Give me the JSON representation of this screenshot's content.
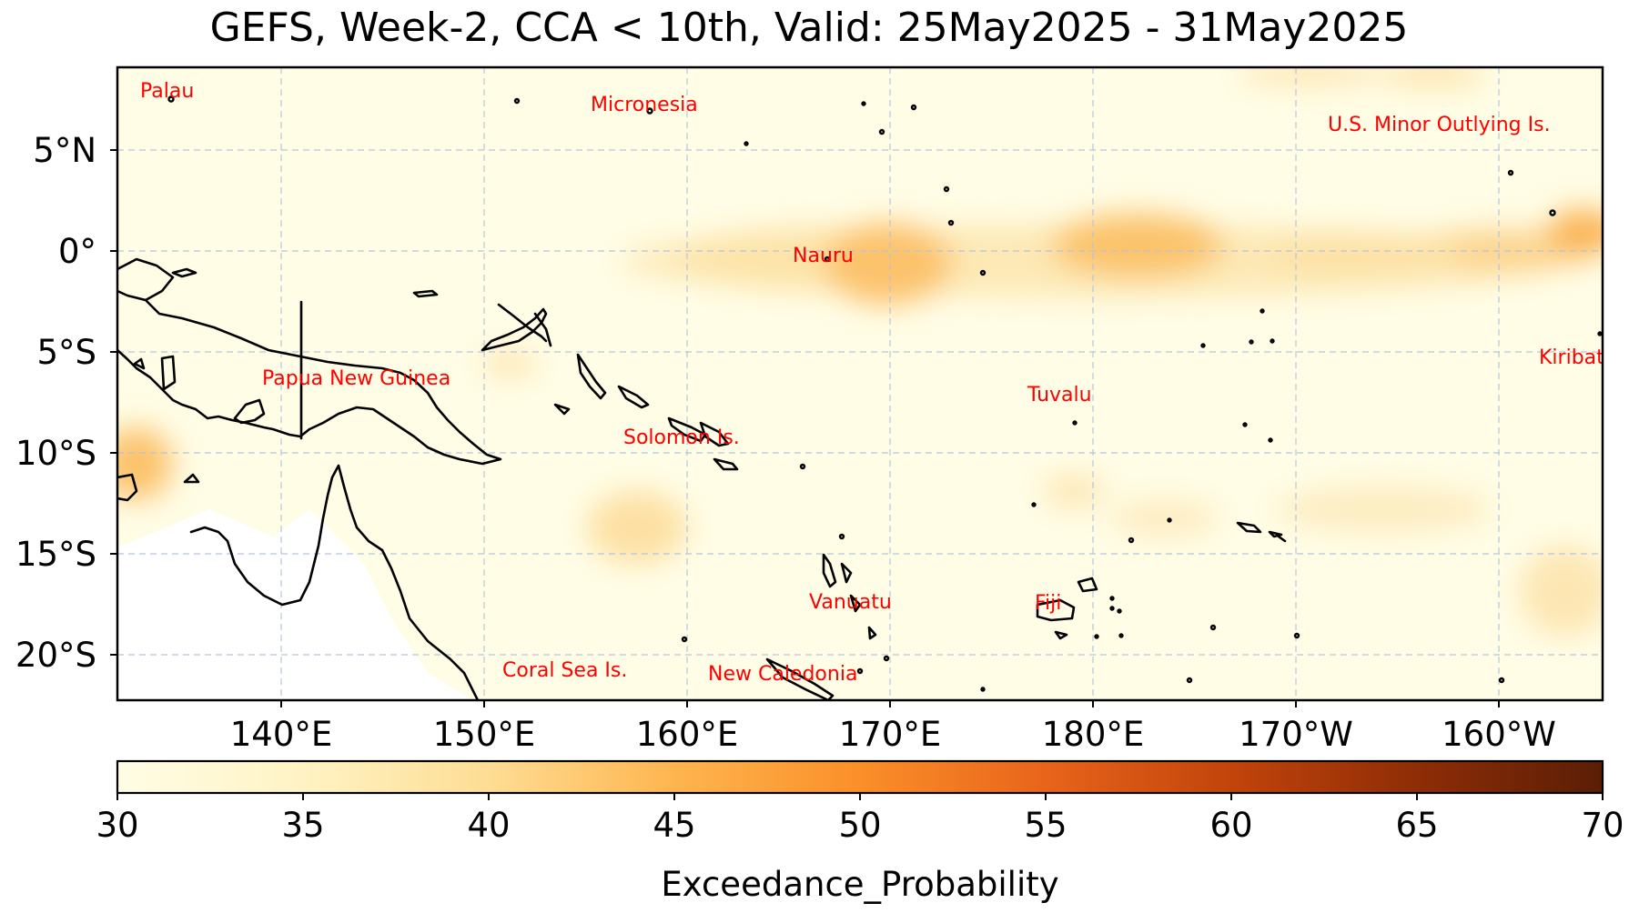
{
  "title": "GEFS, Week-2, CCA < 10th, Valid: 25May2025 - 31May2025",
  "map": {
    "lon_ticks": [
      "140°E",
      "150°E",
      "160°E",
      "170°E",
      "180°E",
      "170°W",
      "160°W"
    ],
    "lat_ticks": [
      "5°N",
      "0°",
      "5°S",
      "10°S",
      "15°S",
      "20°S"
    ],
    "places": [
      {
        "name": "Palau"
      },
      {
        "name": "Micronesia"
      },
      {
        "name": "U.S. Minor Outlying Is."
      },
      {
        "name": "Nauru"
      },
      {
        "name": "Kiribati"
      },
      {
        "name": "Papua New Guinea"
      },
      {
        "name": "Tuvalu"
      },
      {
        "name": "Solomon Is."
      },
      {
        "name": "Vanuatu"
      },
      {
        "name": "Fiji"
      },
      {
        "name": "Coral Sea Is."
      },
      {
        "name": "New Caledonia"
      }
    ]
  },
  "colorbar": {
    "label": "Exceedance_Probability",
    "ticks": [
      "30",
      "35",
      "40",
      "45",
      "50",
      "55",
      "60",
      "65",
      "70"
    ],
    "min": 30,
    "max": 70,
    "colors": [
      "#fffde6",
      "#fff3c4",
      "#fedd94",
      "#feb54f",
      "#fb8f29",
      "#e8641b",
      "#c2440b",
      "#8e2d06",
      "#5a1e05"
    ]
  }
}
